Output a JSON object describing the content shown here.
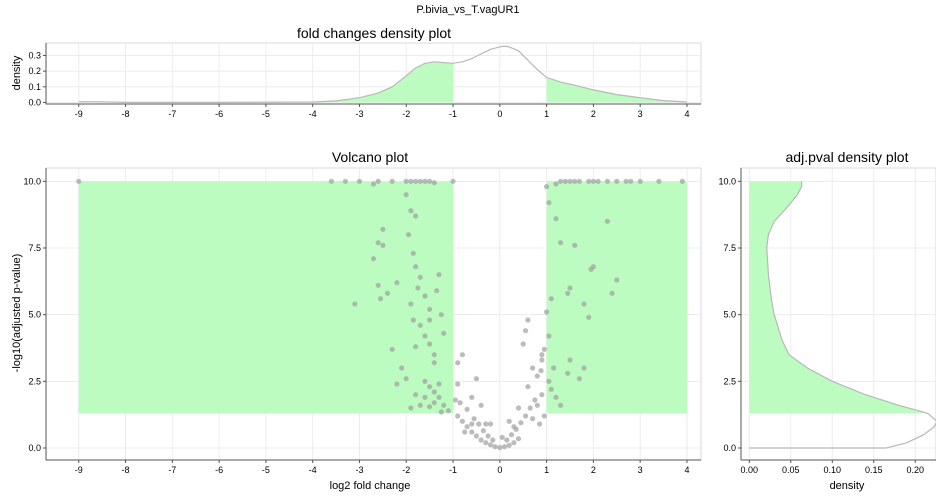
{
  "page_title": "P.bivia_vs_T.vagUR1",
  "colors": {
    "highlight_fill": "#bdfcc0",
    "curve_stroke": "#b8b8b8",
    "point_fill": "#a0a0a0",
    "grid": "#ececec",
    "axis": "#555555"
  },
  "chart_data": [
    {
      "id": "fold-density",
      "type": "area",
      "title": "fold changes density plot",
      "xlabel": "",
      "ylabel": "density",
      "xlim": [
        -9.7,
        4.3
      ],
      "ylim": [
        -0.01,
        0.38
      ],
      "x_ticks": [
        -9,
        -8,
        -7,
        -6,
        -5,
        -4,
        -3,
        -2,
        -1,
        0,
        1,
        2,
        3,
        4
      ],
      "x_tick_labels": [
        "-9",
        "-8",
        "-7",
        "-6",
        "-5",
        "-4",
        "-3",
        "-2",
        "-1",
        "0",
        "1",
        "2",
        "3",
        "4"
      ],
      "y_ticks": [
        0.0,
        0.1,
        0.2,
        0.3
      ],
      "y_tick_labels": [
        "0.0",
        "0.1",
        "0.2",
        "0.3"
      ],
      "highlight_ranges": [
        [
          -9.0,
          -1.0
        ],
        [
          1.0,
          4.0
        ]
      ],
      "grid": true,
      "x": [
        -9.0,
        -8.5,
        -8.0,
        -6.0,
        -4.0,
        -3.5,
        -3.0,
        -2.6,
        -2.3,
        -2.0,
        -1.8,
        -1.6,
        -1.4,
        -1.2,
        -1.0,
        -0.8,
        -0.6,
        -0.4,
        -0.2,
        0.0,
        0.1,
        0.2,
        0.4,
        0.6,
        0.8,
        1.0,
        1.3,
        1.6,
        2.0,
        2.5,
        3.0,
        3.5,
        4.0
      ],
      "y": [
        0.005,
        0.004,
        0.0,
        0.0,
        0.003,
        0.01,
        0.03,
        0.06,
        0.1,
        0.17,
        0.22,
        0.25,
        0.26,
        0.255,
        0.25,
        0.26,
        0.28,
        0.31,
        0.34,
        0.355,
        0.36,
        0.355,
        0.33,
        0.27,
        0.21,
        0.16,
        0.13,
        0.11,
        0.08,
        0.05,
        0.03,
        0.012,
        0.003
      ]
    },
    {
      "id": "volcano",
      "type": "scatter",
      "title": "Volcano plot",
      "xlabel": "log2 fold change",
      "ylabel": "-log10(adjusted p-value)",
      "xlim": [
        -9.7,
        4.3
      ],
      "ylim": [
        -0.45,
        10.5
      ],
      "x_ticks": [
        -9,
        -8,
        -7,
        -6,
        -5,
        -4,
        -3,
        -2,
        -1,
        0,
        1,
        2,
        3,
        4
      ],
      "x_tick_labels": [
        "-9",
        "-8",
        "-7",
        "-6",
        "-5",
        "-4",
        "-3",
        "-2",
        "-1",
        "0",
        "1",
        "2",
        "3",
        "4"
      ],
      "y_ticks": [
        0.0,
        2.5,
        5.0,
        7.5,
        10.0
      ],
      "y_tick_labels": [
        "0.0",
        "2.5",
        "5.0",
        "7.5",
        "10.0"
      ],
      "highlight_rects": [
        {
          "x0": -9.0,
          "x1": -1.0,
          "y0": 1.3,
          "y1": 10.0
        },
        {
          "x0": 1.0,
          "x1": 4.0,
          "y0": 1.3,
          "y1": 10.0
        }
      ],
      "grid": true,
      "points": [
        [
          -9.0,
          10.0
        ],
        [
          -3.6,
          10.0
        ],
        [
          -3.3,
          10.0
        ],
        [
          -3.0,
          10.0
        ],
        [
          -2.7,
          9.9
        ],
        [
          -2.6,
          10.0
        ],
        [
          -2.3,
          10.0
        ],
        [
          -2.0,
          10.0
        ],
        [
          -1.9,
          10.0
        ],
        [
          -1.8,
          10.0
        ],
        [
          -1.7,
          10.0
        ],
        [
          -1.6,
          10.0
        ],
        [
          -1.5,
          10.0
        ],
        [
          -1.4,
          9.95
        ],
        [
          -1.0,
          10.0
        ],
        [
          -2.0,
          9.5
        ],
        [
          -1.9,
          8.9
        ],
        [
          -1.8,
          8.7
        ],
        [
          -1.95,
          8.0
        ],
        [
          -2.5,
          8.2
        ],
        [
          -2.6,
          7.7
        ],
        [
          -2.5,
          7.6
        ],
        [
          -2.7,
          7.1
        ],
        [
          -2.6,
          6.1
        ],
        [
          -2.4,
          5.8
        ],
        [
          -2.55,
          5.6
        ],
        [
          -3.1,
          5.4
        ],
        [
          -2.2,
          6.2
        ],
        [
          -1.85,
          7.3
        ],
        [
          -1.8,
          6.8
        ],
        [
          -1.7,
          6.4
        ],
        [
          -1.75,
          6.0
        ],
        [
          -1.6,
          5.7
        ],
        [
          -1.5,
          5.2
        ],
        [
          -1.9,
          5.4
        ],
        [
          -1.85,
          4.8
        ],
        [
          -1.7,
          4.6
        ],
        [
          -1.6,
          4.2
        ],
        [
          -1.5,
          3.9
        ],
        [
          -1.8,
          3.8
        ],
        [
          -1.4,
          3.5
        ],
        [
          -1.3,
          6.5
        ],
        [
          -1.35,
          5.9
        ],
        [
          -1.25,
          5.0
        ],
        [
          -1.5,
          4.8
        ],
        [
          -1.2,
          4.3
        ],
        [
          -1.4,
          3.2
        ],
        [
          -2.3,
          3.7
        ],
        [
          -2.1,
          3.0
        ],
        [
          -2.2,
          2.4
        ],
        [
          -2.0,
          2.6
        ],
        [
          -1.6,
          2.5
        ],
        [
          -1.5,
          2.3
        ],
        [
          -1.4,
          2.1
        ],
        [
          -1.3,
          2.4
        ],
        [
          -1.6,
          1.9
        ],
        [
          -1.4,
          1.7
        ],
        [
          -1.5,
          1.55
        ],
        [
          -1.3,
          1.9
        ],
        [
          -1.7,
          1.6
        ],
        [
          -1.8,
          2.0
        ],
        [
          -1.9,
          1.5
        ],
        [
          -1.2,
          1.6
        ],
        [
          -1.1,
          1.4
        ],
        [
          -1.25,
          1.35
        ],
        [
          -0.9,
          1.2
        ],
        [
          -0.8,
          1.0
        ],
        [
          -0.7,
          0.8
        ],
        [
          -0.6,
          0.6
        ],
        [
          -0.5,
          0.45
        ],
        [
          -0.4,
          0.3
        ],
        [
          -0.3,
          0.2
        ],
        [
          -0.2,
          0.12
        ],
        [
          -0.1,
          0.05
        ],
        [
          0.0,
          0.02
        ],
        [
          0.1,
          0.05
        ],
        [
          0.2,
          0.1
        ],
        [
          0.3,
          0.2
        ],
        [
          0.4,
          0.35
        ],
        [
          -0.85,
          1.7
        ],
        [
          -0.7,
          1.45
        ],
        [
          -0.55,
          1.1
        ],
        [
          -0.45,
          0.9
        ],
        [
          -0.35,
          0.65
        ],
        [
          -0.25,
          0.45
        ],
        [
          -0.15,
          0.3
        ],
        [
          0.15,
          0.3
        ],
        [
          0.25,
          0.5
        ],
        [
          0.35,
          0.7
        ],
        [
          0.45,
          0.95
        ],
        [
          0.55,
          1.2
        ],
        [
          0.65,
          1.5
        ],
        [
          0.75,
          1.8
        ],
        [
          -0.9,
          2.4
        ],
        [
          -0.8,
          3.5
        ],
        [
          -0.9,
          3.2
        ],
        [
          -0.6,
          1.9
        ],
        [
          -0.5,
          2.6
        ],
        [
          -0.4,
          1.6
        ],
        [
          -0.2,
          0.9
        ],
        [
          0.2,
          1.0
        ],
        [
          0.4,
          1.5
        ],
        [
          0.6,
          2.3
        ],
        [
          0.7,
          3.0
        ],
        [
          0.8,
          2.7
        ],
        [
          0.9,
          3.3
        ],
        [
          0.5,
          3.9
        ],
        [
          0.6,
          4.8
        ],
        [
          0.55,
          4.4
        ],
        [
          -0.95,
          1.8
        ],
        [
          -0.75,
          0.6
        ],
        [
          -0.6,
          0.9
        ],
        [
          -0.3,
          0.9
        ],
        [
          0.05,
          0.4
        ],
        [
          0.3,
          0.8
        ],
        [
          0.8,
          1.6
        ],
        [
          0.9,
          2.0
        ],
        [
          0.95,
          1.2
        ],
        [
          0.85,
          0.9
        ],
        [
          0.7,
          1.1
        ],
        [
          0.95,
          3.7
        ],
        [
          0.9,
          3.5
        ],
        [
          0.88,
          2.9
        ],
        [
          1.05,
          2.5
        ],
        [
          1.1,
          2.2
        ],
        [
          1.2,
          1.9
        ],
        [
          1.3,
          1.6
        ],
        [
          1.15,
          3.0
        ],
        [
          1.5,
          3.3
        ],
        [
          1.45,
          2.8
        ],
        [
          1.8,
          3.0
        ],
        [
          1.7,
          2.6
        ],
        [
          1.1,
          5.6
        ],
        [
          1.05,
          4.2
        ],
        [
          1.2,
          8.6
        ],
        [
          1.3,
          7.7
        ],
        [
          1.6,
          7.6
        ],
        [
          1.5,
          6.0
        ],
        [
          1.45,
          5.8
        ],
        [
          1.8,
          5.4
        ],
        [
          1.9,
          4.9
        ],
        [
          2.0,
          6.8
        ],
        [
          1.95,
          6.7
        ],
        [
          2.3,
          8.5
        ],
        [
          2.4,
          5.8
        ],
        [
          2.5,
          6.3
        ],
        [
          1.0,
          5.1
        ],
        [
          1.05,
          9.2
        ],
        [
          1.0,
          9.8
        ],
        [
          1.2,
          9.9
        ],
        [
          1.3,
          10.0
        ],
        [
          1.4,
          10.0
        ],
        [
          1.5,
          10.0
        ],
        [
          1.6,
          10.0
        ],
        [
          1.7,
          10.0
        ],
        [
          1.9,
          10.0
        ],
        [
          2.0,
          10.0
        ],
        [
          2.1,
          10.0
        ],
        [
          2.3,
          10.0
        ],
        [
          2.5,
          10.0
        ],
        [
          2.7,
          10.0
        ],
        [
          2.8,
          10.0
        ],
        [
          3.0,
          10.0
        ],
        [
          3.4,
          10.0
        ],
        [
          3.9,
          10.0
        ]
      ]
    },
    {
      "id": "pval-density",
      "type": "area",
      "title": "adj.pval density plot",
      "xlabel": "density",
      "ylabel": "",
      "orientation": "horizontal",
      "xlim": [
        -0.01,
        0.225
      ],
      "ylim": [
        -0.45,
        10.5
      ],
      "x_ticks": [
        0.0,
        0.05,
        0.1,
        0.15,
        0.2
      ],
      "x_tick_labels": [
        "0.00",
        "0.05",
        "0.10",
        "0.15",
        "0.20"
      ],
      "y_ticks": [
        0.0,
        2.5,
        5.0,
        7.5,
        10.0
      ],
      "y_tick_labels": [
        "0.0",
        "2.5",
        "5.0",
        "7.5",
        "10.0"
      ],
      "highlight_range": [
        1.3,
        10.0
      ],
      "grid": true,
      "pvalue": [
        0.0,
        0.2,
        0.5,
        0.8,
        1.0,
        1.3,
        1.6,
        2.0,
        2.5,
        3.0,
        3.5,
        4.0,
        4.5,
        5.0,
        5.5,
        6.0,
        6.5,
        7.0,
        7.5,
        8.0,
        8.5,
        9.0,
        9.5,
        9.8,
        10.0
      ],
      "density": [
        0.165,
        0.19,
        0.21,
        0.223,
        0.226,
        0.215,
        0.18,
        0.14,
        0.1,
        0.07,
        0.048,
        0.04,
        0.035,
        0.03,
        0.027,
        0.025,
        0.023,
        0.022,
        0.021,
        0.023,
        0.03,
        0.045,
        0.058,
        0.063,
        0.063
      ]
    }
  ]
}
